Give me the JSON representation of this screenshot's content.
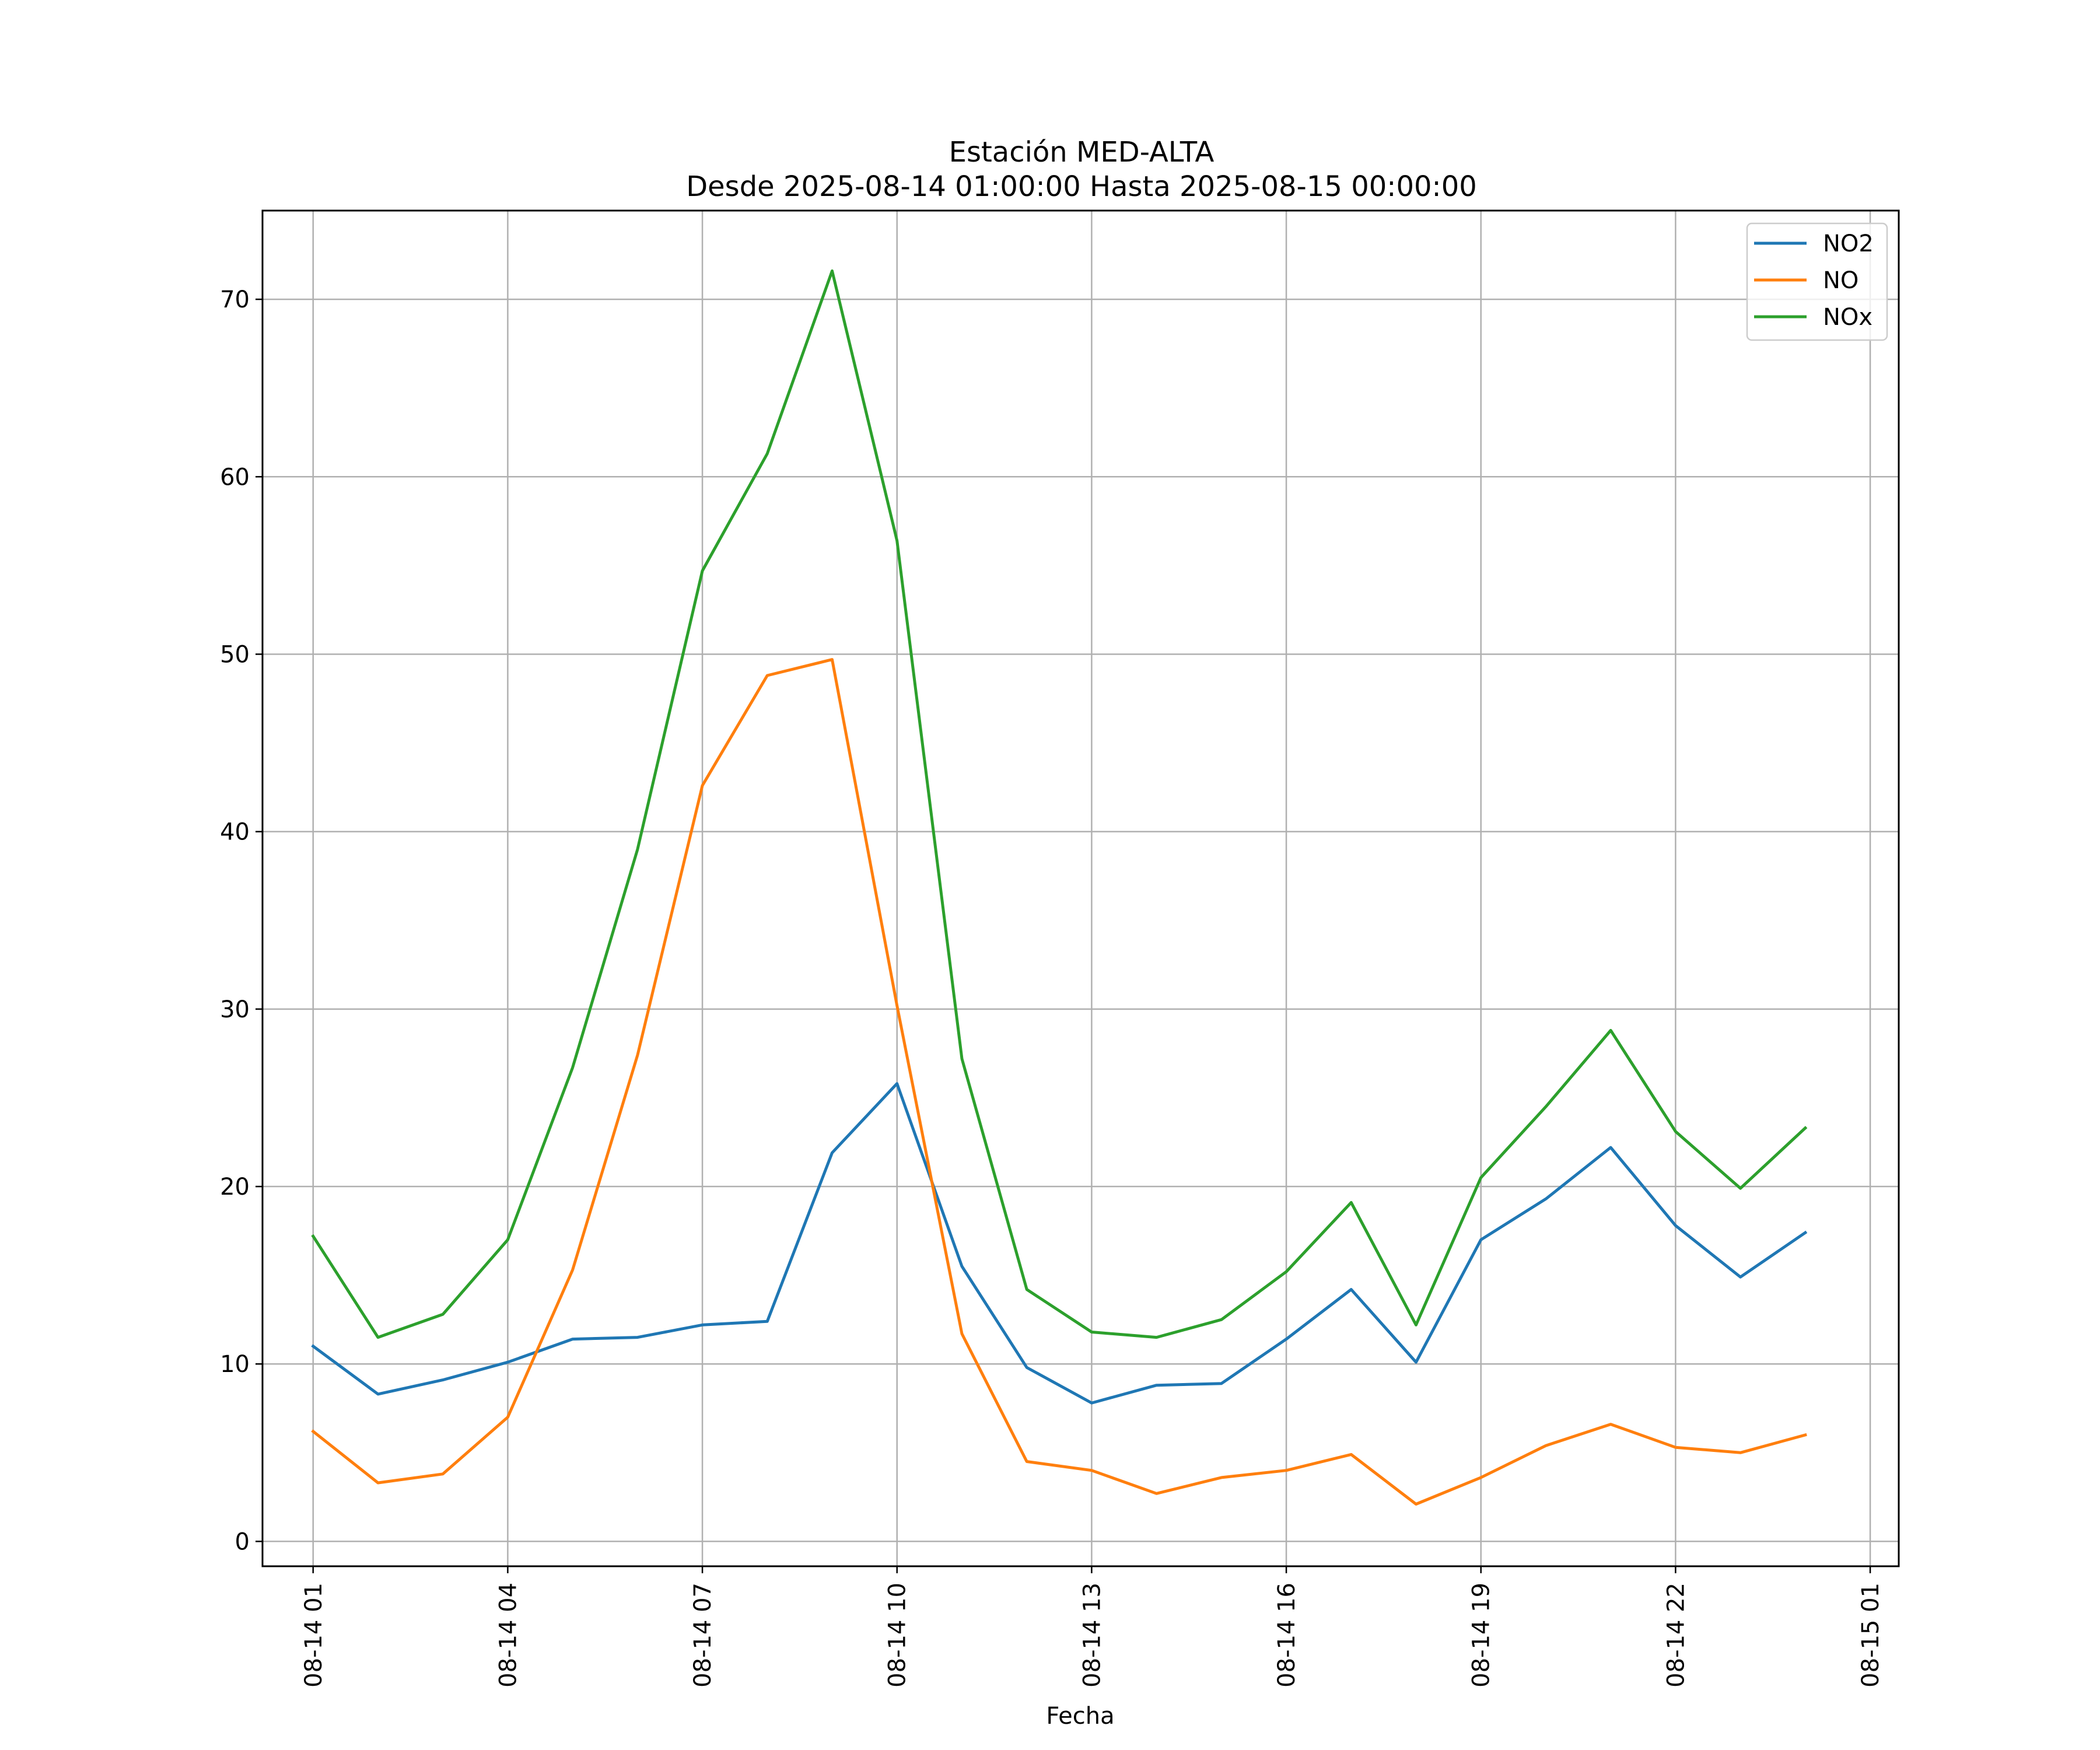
{
  "chart_data": {
    "type": "line",
    "title_line1": "Estación MED-ALTA",
    "title_line2": "Desde 2025-08-14 01:00:00 Hasta 2025-08-15 00:00:00",
    "xlabel": "Fecha",
    "ylabel": "",
    "ylim": [
      -1.4,
      75
    ],
    "xlim_hours": [
      -0.78,
      24.44
    ],
    "grid": true,
    "legend_position": "upper right",
    "x_ticks": [
      {
        "hour": 0,
        "label": "08-14 01"
      },
      {
        "hour": 3,
        "label": "08-14 04"
      },
      {
        "hour": 6,
        "label": "08-14 07"
      },
      {
        "hour": 9,
        "label": "08-14 10"
      },
      {
        "hour": 12,
        "label": "08-14 13"
      },
      {
        "hour": 15,
        "label": "08-14 16"
      },
      {
        "hour": 18,
        "label": "08-14 19"
      },
      {
        "hour": 21,
        "label": "08-14 22"
      },
      {
        "hour": 24,
        "label": "08-15 01"
      }
    ],
    "y_ticks": [
      {
        "value": 0,
        "label": "0"
      },
      {
        "value": 10,
        "label": "10"
      },
      {
        "value": 20,
        "label": "20"
      },
      {
        "value": 30,
        "label": "30"
      },
      {
        "value": 40,
        "label": "40"
      },
      {
        "value": 50,
        "label": "50"
      },
      {
        "value": 60,
        "label": "60"
      },
      {
        "value": 70,
        "label": "70"
      }
    ],
    "x": [
      "2025-08-14 01:00",
      "2025-08-14 02:00",
      "2025-08-14 03:00",
      "2025-08-14 04:00",
      "2025-08-14 05:00",
      "2025-08-14 06:00",
      "2025-08-14 07:00",
      "2025-08-14 08:00",
      "2025-08-14 09:00",
      "2025-08-14 10:00",
      "2025-08-14 11:00",
      "2025-08-14 12:00",
      "2025-08-14 13:00",
      "2025-08-14 14:00",
      "2025-08-14 15:00",
      "2025-08-14 16:00",
      "2025-08-14 17:00",
      "2025-08-14 18:00",
      "2025-08-14 19:00",
      "2025-08-14 20:00",
      "2025-08-14 21:00",
      "2025-08-14 22:00",
      "2025-08-14 23:00",
      "2025-08-15 00:00"
    ],
    "series": [
      {
        "name": "NO2",
        "color": "#1f77b4",
        "values": [
          11.0,
          8.3,
          9.1,
          10.1,
          11.4,
          11.5,
          12.2,
          12.4,
          21.9,
          25.8,
          15.5,
          9.8,
          7.8,
          8.8,
          8.9,
          11.4,
          14.2,
          10.1,
          17.0,
          19.3,
          22.2,
          17.8,
          14.9,
          17.4
        ]
      },
      {
        "name": "NO",
        "color": "#ff7f0e",
        "values": [
          6.2,
          3.3,
          3.8,
          7.0,
          15.3,
          27.4,
          42.6,
          48.8,
          49.7,
          30.2,
          11.7,
          4.5,
          4.0,
          2.7,
          3.6,
          4.0,
          4.9,
          2.1,
          3.6,
          5.4,
          6.6,
          5.3,
          5.0,
          6.0
        ]
      },
      {
        "name": "NOx",
        "color": "#2ca02c",
        "values": [
          17.2,
          11.5,
          12.8,
          17.0,
          26.7,
          39.0,
          54.7,
          61.3,
          71.6,
          56.4,
          27.2,
          14.2,
          11.8,
          11.5,
          12.5,
          15.2,
          19.1,
          12.2,
          20.5,
          24.5,
          28.8,
          23.1,
          19.9,
          23.3
        ]
      }
    ]
  }
}
